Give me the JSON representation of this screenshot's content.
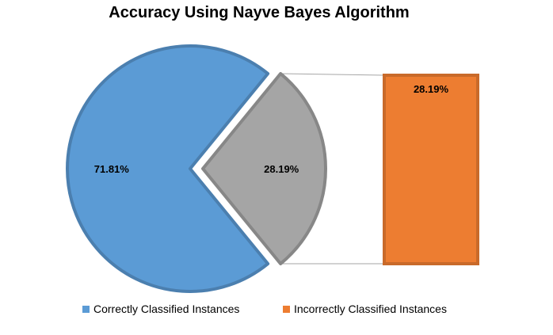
{
  "chart_data": {
    "type": "pie",
    "subtype": "bar-of-pie",
    "title": "Accuracy Using Nayve Bayes Algorithm",
    "slices": [
      {
        "name": "Correctly Classified Instances",
        "value": 71.81,
        "label": "71.81%",
        "color": "#5B9BD5"
      },
      {
        "name": "Incorrectly Classified Instances",
        "value": 28.19,
        "label": "28.19%",
        "color": "#A5A5A5",
        "exploded": true
      }
    ],
    "breakout_bar": {
      "name": "Incorrectly Classified Instances",
      "value": 28.19,
      "label": "28.19%",
      "color": "#ED7D31"
    },
    "legend": {
      "position": "bottom",
      "entries": [
        {
          "name": "Correctly Classified Instances",
          "color": "#5B9BD5"
        },
        {
          "name": "Incorrectly Classified Instances",
          "color": "#ED7D31"
        }
      ]
    }
  }
}
